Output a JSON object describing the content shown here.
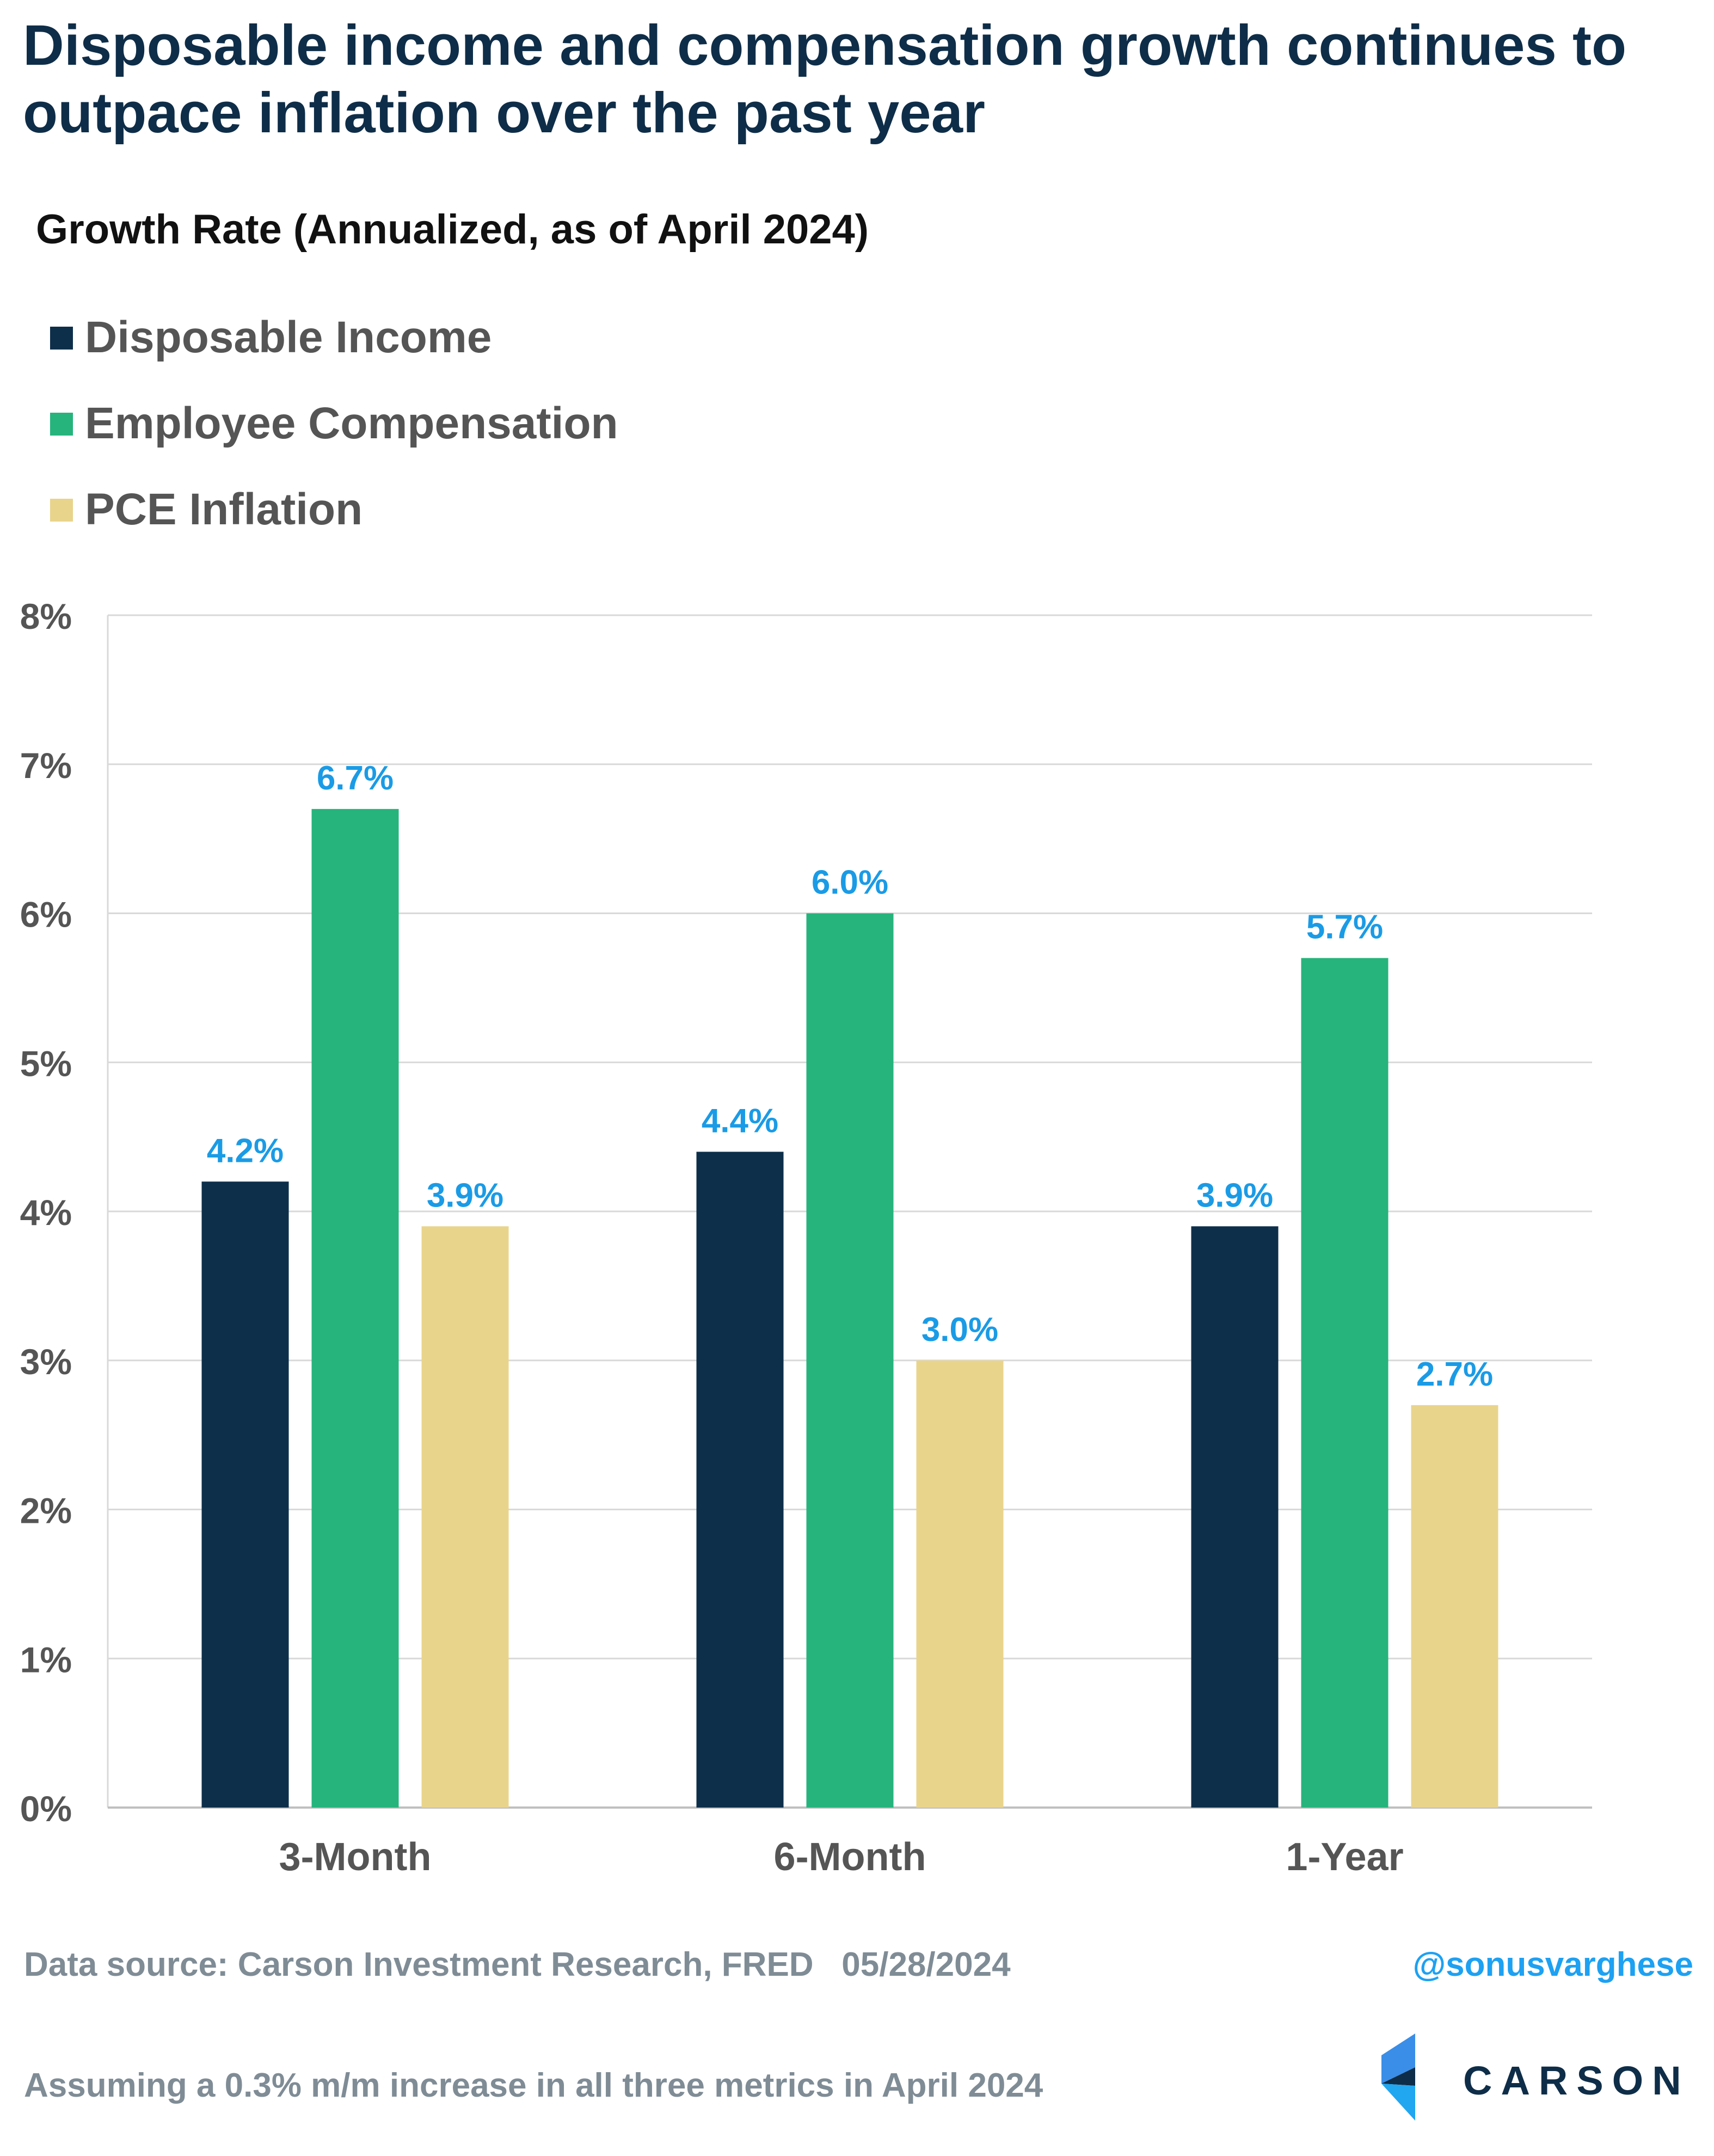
{
  "title": "Disposable income and compensation growth continues to outpace inflation over the past year",
  "subtitle": "Growth Rate (Annualized, as of April 2024)",
  "legend": [
    {
      "label": "Disposable Income",
      "color": "#0e2f4a"
    },
    {
      "label": "Employee Compensation",
      "color": "#26b47c"
    },
    {
      "label": "PCE Inflation",
      "color": "#e9d48c"
    }
  ],
  "chart_data": {
    "type": "bar",
    "title": "Growth Rate (Annualized, as of April 2024)",
    "categories": [
      "3-Month",
      "6-Month",
      "1-Year"
    ],
    "series": [
      {
        "name": "Disposable Income",
        "values": [
          4.2,
          4.4,
          3.9
        ],
        "labels": [
          "4.2%",
          "4.4%",
          "3.9%"
        ],
        "color": "#0e2f4a"
      },
      {
        "name": "Employee Compensation",
        "values": [
          6.7,
          6.0,
          5.7
        ],
        "labels": [
          "6.7%",
          "6.0%",
          "5.7%"
        ],
        "color": "#26b47c"
      },
      {
        "name": "PCE Inflation",
        "values": [
          3.9,
          3.0,
          2.7
        ],
        "labels": [
          "3.9%",
          "3.0%",
          "2.7%"
        ],
        "color": "#e9d48c"
      }
    ],
    "ylim": [
      0,
      8
    ],
    "yticks": [
      "0%",
      "1%",
      "2%",
      "3%",
      "4%",
      "5%",
      "6%",
      "7%",
      "8%"
    ],
    "grid": true,
    "legend_position": "top-left",
    "data_label_color": "#1a9be6"
  },
  "footer": {
    "source": "Data source: Carson Investment Research, FRED   05/28/2024",
    "handle": "@sonusvarghese",
    "note": "Assuming a 0.3% m/m increase in all three metrics in April 2024"
  },
  "logo": {
    "text": "CARSON"
  }
}
